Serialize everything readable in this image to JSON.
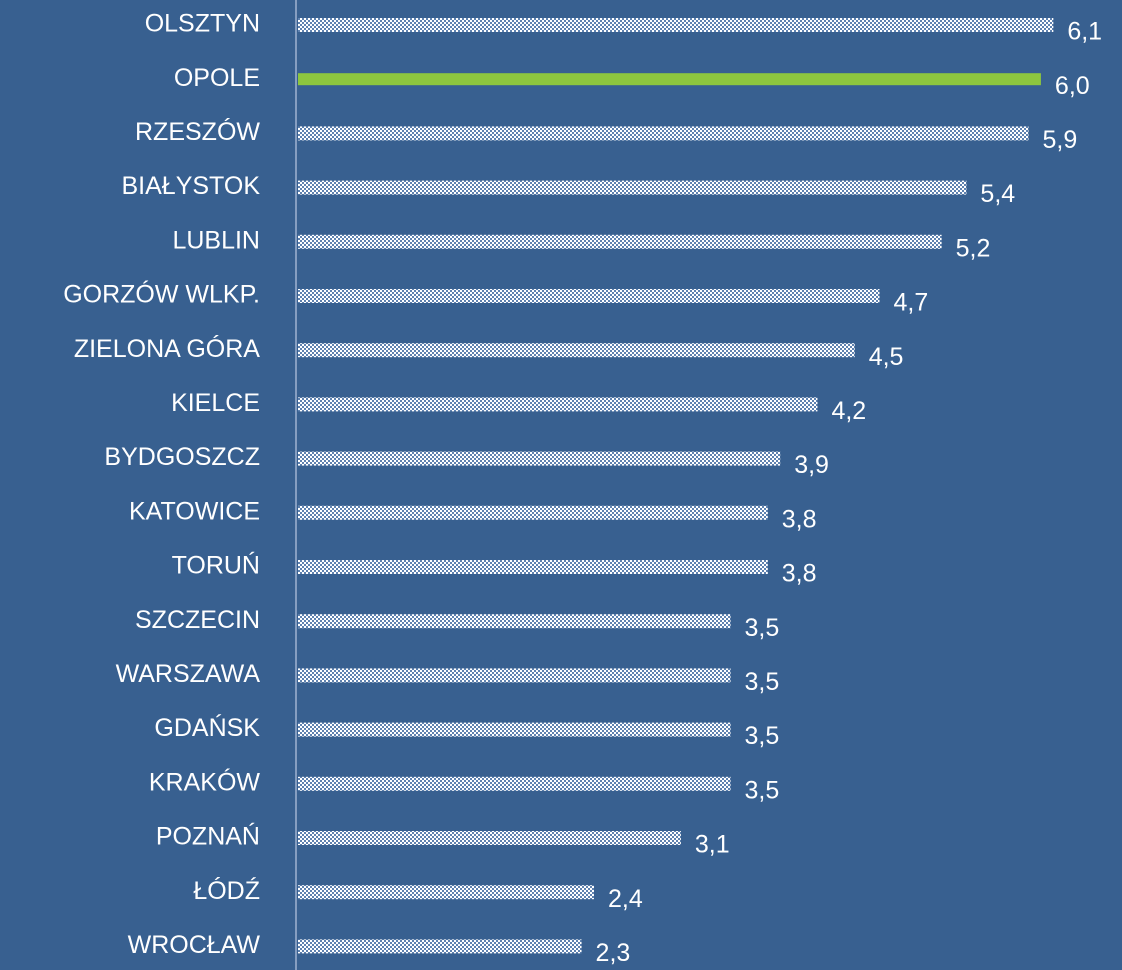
{
  "chart_data": {
    "type": "barh",
    "categories": [
      "OLSZTYN",
      "OPOLE",
      "RZESZÓW",
      "BIAŁYSTOK",
      "LUBLIN",
      "GORZÓW WLKP.",
      "ZIELONA GÓRA",
      "KIELCE",
      "BYDGOSZCZ",
      "KATOWICE",
      "TORUŃ",
      "SZCZECIN",
      "WARSZAWA",
      "GDAŃSK",
      "KRAKÓW",
      "POZNAŃ",
      "ŁÓDŹ",
      "WROCŁAW"
    ],
    "values": [
      6.1,
      6.0,
      5.9,
      5.4,
      5.2,
      4.7,
      4.5,
      4.2,
      3.9,
      3.8,
      3.8,
      3.5,
      3.5,
      3.5,
      3.5,
      3.1,
      2.4,
      2.3
    ],
    "value_labels": [
      "6,1",
      "6,0",
      "5,9",
      "5,4",
      "5,2",
      "4,7",
      "4,5",
      "4,2",
      "3,9",
      "3,8",
      "3,8",
      "3,5",
      "3,5",
      "3,5",
      "3,5",
      "3,1",
      "2,4",
      "2,3"
    ],
    "colors": [
      "#ffffff",
      "#8dc63f",
      "#ffffff",
      "#ffffff",
      "#ffffff",
      "#ffffff",
      "#ffffff",
      "#ffffff",
      "#ffffff",
      "#ffffff",
      "#ffffff",
      "#ffffff",
      "#ffffff",
      "#ffffff",
      "#ffffff",
      "#ffffff",
      "#ffffff",
      "#ffffff"
    ],
    "xlim": [
      0,
      6.5
    ]
  }
}
